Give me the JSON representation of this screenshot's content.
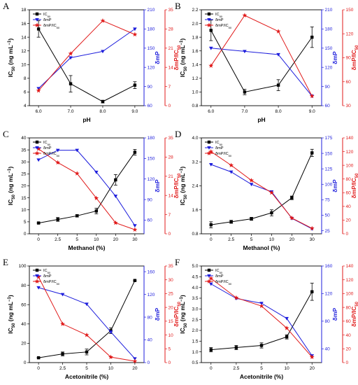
{
  "figure": {
    "colors": {
      "ic50": "#000000",
      "dmp": "#1c1cdc",
      "ratio": "#e01818"
    }
  },
  "chart_data": [
    {
      "panel": "A",
      "type": "line",
      "xlabel": "pH",
      "categories": [
        "6.0",
        "7.0",
        "8.0",
        "9.0"
      ],
      "ylabel_left": "IC50 (ng mL−1)",
      "ylabel_right1": "δmP",
      "ylabel_right2": "δmP/IC50",
      "ylim_left": [
        4,
        18
      ],
      "yticks_left": [
        "4",
        "6",
        "8",
        "10",
        "12",
        "14",
        "16",
        "18"
      ],
      "ylim_right1": [
        60,
        210
      ],
      "yticks_right1": [
        "60",
        "90",
        "120",
        "150",
        "180",
        "210"
      ],
      "ylim_right2": [
        0,
        35
      ],
      "yticks_right2": [
        "0",
        "7",
        "14",
        "21",
        "28",
        "35"
      ],
      "legend": [
        "IC50",
        "δmP",
        "δmP/IC50"
      ],
      "series": [
        {
          "name": "IC50",
          "axis": "left",
          "marker": "square",
          "values": [
            15.2,
            7.2,
            4.6,
            7.0
          ],
          "errors": [
            1.2,
            1.2,
            0.2,
            0.5
          ]
        },
        {
          "name": "δmP",
          "axis": "right1",
          "marker": "triangle",
          "values": [
            87,
            135,
            145,
            180
          ],
          "errors": [
            0,
            0,
            0,
            0
          ]
        },
        {
          "name": "δmP/IC50",
          "axis": "right2",
          "marker": "star",
          "values": [
            5.5,
            19,
            31,
            26
          ],
          "errors": [
            0,
            0,
            0,
            0
          ]
        }
      ]
    },
    {
      "panel": "B",
      "type": "line",
      "xlabel": "pH",
      "categories": [
        "6.0",
        "7.0",
        "8.0",
        "9.0"
      ],
      "ylabel_left": "IC50 (ng mL−1)",
      "ylabel_right1": "δmP",
      "ylabel_right2": "δmP/IC50",
      "ylim_left": [
        0.8,
        2.2
      ],
      "yticks_left": [
        "0.8",
        "1.0",
        "1.2",
        "1.4",
        "1.6",
        "1.8",
        "2.0",
        "2.2"
      ],
      "ylim_right1": [
        60,
        210
      ],
      "yticks_right1": [
        "60",
        "90",
        "120",
        "150",
        "180",
        "210"
      ],
      "ylim_right2": [
        30,
        150
      ],
      "yticks_right2": [
        "30",
        "60",
        "90",
        "120",
        "150"
      ],
      "legend": [
        "IC50",
        "δmP",
        "δmP/IC50"
      ],
      "series": [
        {
          "name": "IC50",
          "axis": "left",
          "marker": "square",
          "values": [
            1.9,
            1.0,
            1.1,
            1.8
          ],
          "errors": [
            0.15,
            0.04,
            0.08,
            0.15
          ]
        },
        {
          "name": "δmP",
          "axis": "right1",
          "marker": "triangle",
          "values": [
            150,
            145,
            140,
            75
          ],
          "errors": [
            0,
            0,
            0,
            0
          ]
        },
        {
          "name": "δmP/IC50",
          "axis": "right2",
          "marker": "star",
          "values": [
            80,
            143,
            123,
            42
          ],
          "errors": [
            0,
            0,
            0,
            0
          ]
        }
      ]
    },
    {
      "panel": "C",
      "type": "line",
      "xlabel": "Methanol (%)",
      "categories": [
        "0",
        "2.5",
        "5",
        "10",
        "20",
        "30"
      ],
      "ylabel_left": "IC50 (ng mL−1)",
      "ylabel_right1": "δmP",
      "ylabel_right2": "δmP/IC50",
      "ylim_left": [
        0,
        40
      ],
      "yticks_left": [
        "0",
        "5",
        "10",
        "15",
        "20",
        "25",
        "30",
        "35",
        "40"
      ],
      "ylim_right1": [
        40,
        180
      ],
      "yticks_right1": [
        "60",
        "90",
        "120",
        "150",
        "180"
      ],
      "ylim_right2": [
        0,
        35
      ],
      "yticks_right2": [
        "0",
        "7",
        "14",
        "21",
        "28",
        "35"
      ],
      "legend": [
        "IC50",
        "δmP",
        "δmP/IC50"
      ],
      "series": [
        {
          "name": "IC50",
          "axis": "left",
          "marker": "square",
          "values": [
            4.5,
            6.0,
            7.5,
            9.5,
            22.5,
            34.0
          ],
          "errors": [
            0.3,
            0.8,
            0.5,
            1.2,
            2.2,
            1.2
          ]
        },
        {
          "name": "δmP",
          "axis": "right1",
          "marker": "triangle",
          "values": [
            148,
            162,
            162,
            130,
            95,
            52
          ],
          "errors": [
            0,
            0,
            0,
            0,
            0,
            0
          ]
        },
        {
          "name": "δmP/IC50",
          "axis": "right2",
          "marker": "star",
          "values": [
            31,
            26,
            22,
            13,
            4,
            1.5
          ],
          "errors": [
            0,
            0,
            0,
            0,
            0,
            0
          ]
        }
      ]
    },
    {
      "panel": "D",
      "type": "line",
      "xlabel": "Methanol (%)",
      "categories": [
        "0",
        "2.5",
        "5",
        "10",
        "20",
        "30"
      ],
      "ylabel_left": "IC50 (ng mL−1)",
      "ylabel_right1": "δmP",
      "ylabel_right2": "δmP/IC50",
      "ylim_left": [
        0.8,
        4.0
      ],
      "yticks_left": [
        "0.8",
        "1.6",
        "2.4",
        "3.2",
        "4.0"
      ],
      "ylim_right1": [
        20,
        175
      ],
      "yticks_right1": [
        "25",
        "50",
        "75",
        "100",
        "125",
        "150",
        "175"
      ],
      "ylim_right2": [
        0,
        140
      ],
      "yticks_right2": [
        "0",
        "20",
        "40",
        "60",
        "80",
        "100",
        "120",
        "140"
      ],
      "legend": [
        "IC50",
        "δmP",
        "δmP/IC50"
      ],
      "series": [
        {
          "name": "IC50",
          "axis": "left",
          "marker": "square",
          "values": [
            1.1,
            1.2,
            1.3,
            1.5,
            2.0,
            3.5
          ],
          "errors": [
            0.1,
            0.05,
            0.05,
            0.1,
            0.06,
            0.12
          ]
        },
        {
          "name": "δmP",
          "axis": "right1",
          "marker": "triangle",
          "values": [
            132,
            120,
            100,
            88,
            45,
            28
          ],
          "errors": [
            0,
            0,
            0,
            0,
            0,
            0
          ]
        },
        {
          "name": "δmP/IC50",
          "axis": "right2",
          "marker": "star",
          "values": [
            120,
            100,
            78,
            60,
            23,
            8
          ],
          "errors": [
            0,
            0,
            0,
            0,
            0,
            0
          ]
        }
      ]
    },
    {
      "panel": "E",
      "type": "line",
      "xlabel": "Acetonitrile (%)",
      "categories": [
        "0",
        "2.5",
        "5",
        "10",
        "20"
      ],
      "ylabel_left": "IC50 (ng mL−1)",
      "ylabel_right1": "δmP",
      "ylabel_right2": "δmP/IC50",
      "ylim_left": [
        0,
        100
      ],
      "yticks_left": [
        "0",
        "20",
        "40",
        "60",
        "80",
        "100"
      ],
      "ylim_right1": [
        0,
        170
      ],
      "yticks_right1": [
        "0",
        "40",
        "80",
        "120",
        "160"
      ],
      "ylim_right2": [
        0,
        35
      ],
      "yticks_right2": [
        "0",
        "5",
        "10",
        "15",
        "20",
        "25",
        "30",
        "35"
      ],
      "legend": [
        "IC50",
        "δmP",
        "δmP/IC50"
      ],
      "series": [
        {
          "name": "IC50",
          "axis": "left",
          "marker": "square",
          "values": [
            5,
            9,
            11,
            33,
            85
          ],
          "errors": [
            0.5,
            2,
            3,
            3,
            0.5
          ]
        },
        {
          "name": "δmP",
          "axis": "right1",
          "marker": "triangle",
          "values": [
            132,
            120,
            103,
            54,
            7
          ],
          "errors": [
            0,
            0,
            0,
            0,
            0
          ]
        },
        {
          "name": "δmP/IC50",
          "axis": "right2",
          "marker": "star",
          "values": [
            31,
            14,
            10,
            2,
            0.5
          ],
          "errors": [
            0,
            0,
            0,
            0,
            0
          ]
        }
      ]
    },
    {
      "panel": "F",
      "type": "line",
      "xlabel": "Acetonitrile (%)",
      "categories": [
        "0",
        "2.5",
        "5",
        "10",
        "20"
      ],
      "ylabel_left": "IC50 (ng mL−1)",
      "ylabel_right1": "δmP",
      "ylabel_right2": "δmP/IC50",
      "ylim_left": [
        0.5,
        5.0
      ],
      "yticks_left": [
        "0.5",
        "1.0",
        "1.5",
        "2.0",
        "2.5",
        "3.0",
        "3.5",
        "4.0",
        "4.5",
        "5.0"
      ],
      "ylim_right1": [
        20,
        160
      ],
      "yticks_right1": [
        "40",
        "80",
        "120",
        "160"
      ],
      "ylim_right2": [
        0,
        140
      ],
      "yticks_right2": [
        "0",
        "20",
        "40",
        "60",
        "80",
        "100",
        "120",
        "140"
      ],
      "legend": [
        "IC50",
        "δmP",
        "δmP/IC50"
      ],
      "series": [
        {
          "name": "IC50",
          "axis": "left",
          "marker": "square",
          "values": [
            1.1,
            1.2,
            1.3,
            1.7,
            3.8
          ],
          "errors": [
            0.1,
            0.1,
            0.12,
            0.1,
            0.4
          ]
        },
        {
          "name": "δmP",
          "axis": "right1",
          "marker": "triangle",
          "values": [
            134,
            113,
            106,
            84,
            30
          ],
          "errors": [
            0,
            0,
            0,
            0,
            0
          ]
        },
        {
          "name": "δmP/IC50",
          "axis": "right2",
          "marker": "star",
          "values": [
            122,
            94,
            82,
            50,
            8
          ],
          "errors": [
            0,
            0,
            0,
            0,
            0
          ]
        }
      ]
    }
  ]
}
